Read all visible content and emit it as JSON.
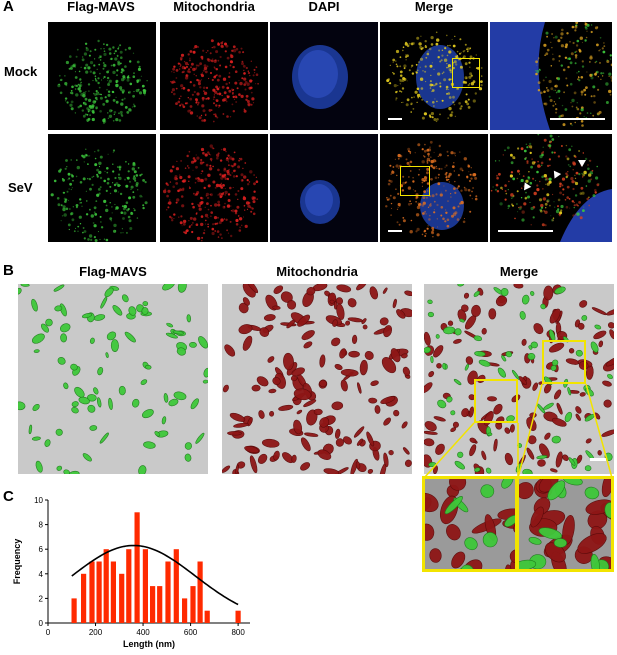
{
  "panel_a": {
    "letter": "A",
    "columns": [
      "Flag-MAVS",
      "Mitochondria",
      "DAPI",
      "Merge"
    ],
    "rows": [
      "Mock",
      "SeV"
    ]
  },
  "panel_b": {
    "letter": "B",
    "columns": [
      "Flag-MAVS",
      "Mitochondria",
      "Merge"
    ]
  },
  "panel_c": {
    "letter": "C"
  },
  "colors": {
    "mavs_green": "#3cc83c",
    "mito_red": "#b01818",
    "dapi_blue": "#3050d8",
    "box_yellow": "#f2e400",
    "bar_red": "#ff2a00"
  },
  "chart_data": {
    "type": "bar",
    "xlabel": "Length (nm)",
    "ylabel": "Frequency",
    "xlim": [
      0,
      850
    ],
    "ylim": [
      0,
      10
    ],
    "xticks": [
      0,
      200,
      400,
      600,
      800
    ],
    "yticks": [
      0,
      2,
      4,
      6,
      8,
      10
    ],
    "x": [
      110,
      150,
      185,
      215,
      245,
      275,
      310,
      340,
      375,
      410,
      440,
      470,
      505,
      540,
      575,
      610,
      640,
      670,
      800
    ],
    "values": [
      2,
      4,
      5,
      5,
      6,
      5,
      4,
      6,
      9,
      6,
      3,
      3,
      5,
      6,
      2,
      3,
      5,
      1,
      1
    ],
    "fit_curve": {
      "type": "gaussian",
      "amplitude": 6.3,
      "mean": 360,
      "sd": 260
    }
  }
}
